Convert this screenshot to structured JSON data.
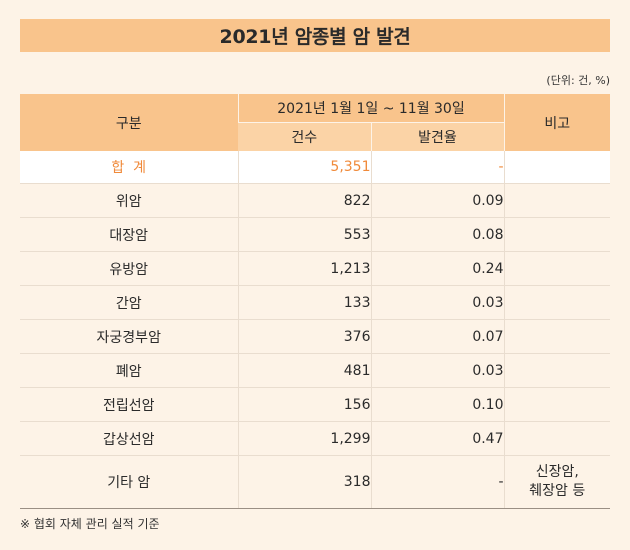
{
  "title": "2021년 암종별 암 발견",
  "unit_note": "(단위: 건, %)",
  "header": {
    "category": "구분",
    "period": "2021년 1월 1일 ~ 11월 30일",
    "count": "건수",
    "rate": "발견율",
    "note": "비고"
  },
  "total": {
    "label": "합  계",
    "count": "5,351",
    "rate": "-",
    "note": ""
  },
  "rows": [
    {
      "name": "위암",
      "count": "822",
      "rate": "0.09",
      "note": ""
    },
    {
      "name": "대장암",
      "count": "553",
      "rate": "0.08",
      "note": ""
    },
    {
      "name": "유방암",
      "count": "1,213",
      "rate": "0.24",
      "note": ""
    },
    {
      "name": "간암",
      "count": "133",
      "rate": "0.03",
      "note": ""
    },
    {
      "name": "자궁경부암",
      "count": "376",
      "rate": "0.07",
      "note": ""
    },
    {
      "name": "폐암",
      "count": "481",
      "rate": "0.03",
      "note": ""
    },
    {
      "name": "전립선암",
      "count": "156",
      "rate": "0.10",
      "note": ""
    },
    {
      "name": "갑상선암",
      "count": "1,299",
      "rate": "0.47",
      "note": ""
    },
    {
      "name": "기타 암",
      "count": "318",
      "rate": "-",
      "note": "신장암,",
      "note2": "췌장암 등"
    }
  ],
  "footnote": "※ 협회 자체 관리 실적 기준"
}
